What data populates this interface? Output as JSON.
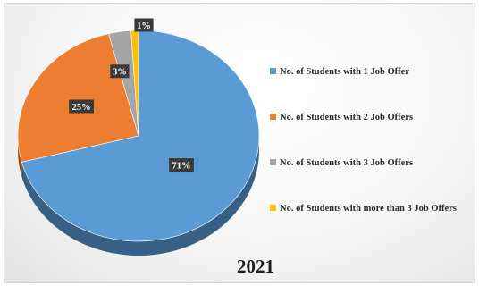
{
  "chart_data": {
    "type": "pie",
    "title": "2021",
    "legend_position": "right",
    "slices": [
      {
        "label": "No. of Students with 1 Job Offer",
        "value": 71,
        "display": "71%",
        "color": "#5b9bd5"
      },
      {
        "label": "No. of Students with 2 Job Offers",
        "value": 25,
        "display": "25%",
        "color": "#ed7d31"
      },
      {
        "label": "No. of Students with 3 Job Offers",
        "value": 3,
        "display": "3%",
        "color": "#a5a5a5"
      },
      {
        "label": "No. of Students with more than 3 Job Offers",
        "value": 1,
        "display": "1%",
        "color": "#ffc000"
      }
    ]
  }
}
